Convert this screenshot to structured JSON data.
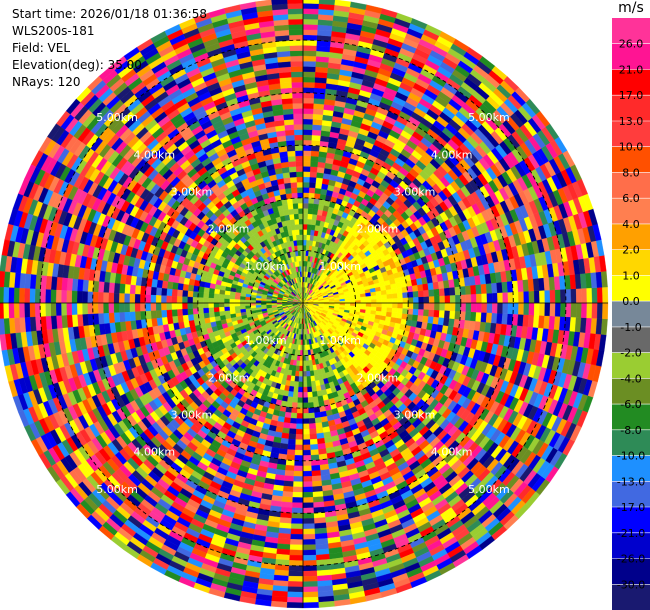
{
  "header": {
    "start_time": "Start time: 2026/01/18 01:36:58",
    "instrument": "WLS200s-181",
    "field": "Field: VEL",
    "elevation": "Elevation(deg): 35.00",
    "nrays": "NRays: 120"
  },
  "chart_data": {
    "type": "heatmap",
    "projection": "polar (PPI scan)",
    "field": "VEL",
    "nrays": 120,
    "range_rings_km": [
      1.0,
      2.0,
      3.0,
      4.0,
      5.0
    ],
    "range_ring_labels": [
      "1.00km",
      "2.00km",
      "3.00km",
      "4.00km",
      "5.00km"
    ],
    "max_range_km": 5.8,
    "colorbar": {
      "unit": "m/s",
      "ticks": [
        "26.0",
        "21.0",
        "17.0",
        "13.0",
        "10.0",
        "8.0",
        "6.0",
        "4.0",
        "2.0",
        "1.0",
        "0.0",
        "-1.0",
        "-2.0",
        "-4.0",
        "-6.0",
        "-8.0",
        "-10.0",
        "-13.0",
        "-17.0",
        "-21.0",
        "-26.0",
        "-30.0"
      ],
      "colors_top_to_bottom": [
        "#ff3399",
        "#ff1493",
        "#ff0000",
        "#ff2a2a",
        "#ff3d3d",
        "#ff5000",
        "#ff6e4a",
        "#ff7f50",
        "#ffa000",
        "#ffd700",
        "#ffff00",
        "#778899",
        "#696969",
        "#9acd32",
        "#6b8e23",
        "#228b22",
        "#2e8b57",
        "#1e90ff",
        "#4169e1",
        "#0000ff",
        "#0000cd",
        "#00008b",
        "#191970"
      ]
    }
  }
}
